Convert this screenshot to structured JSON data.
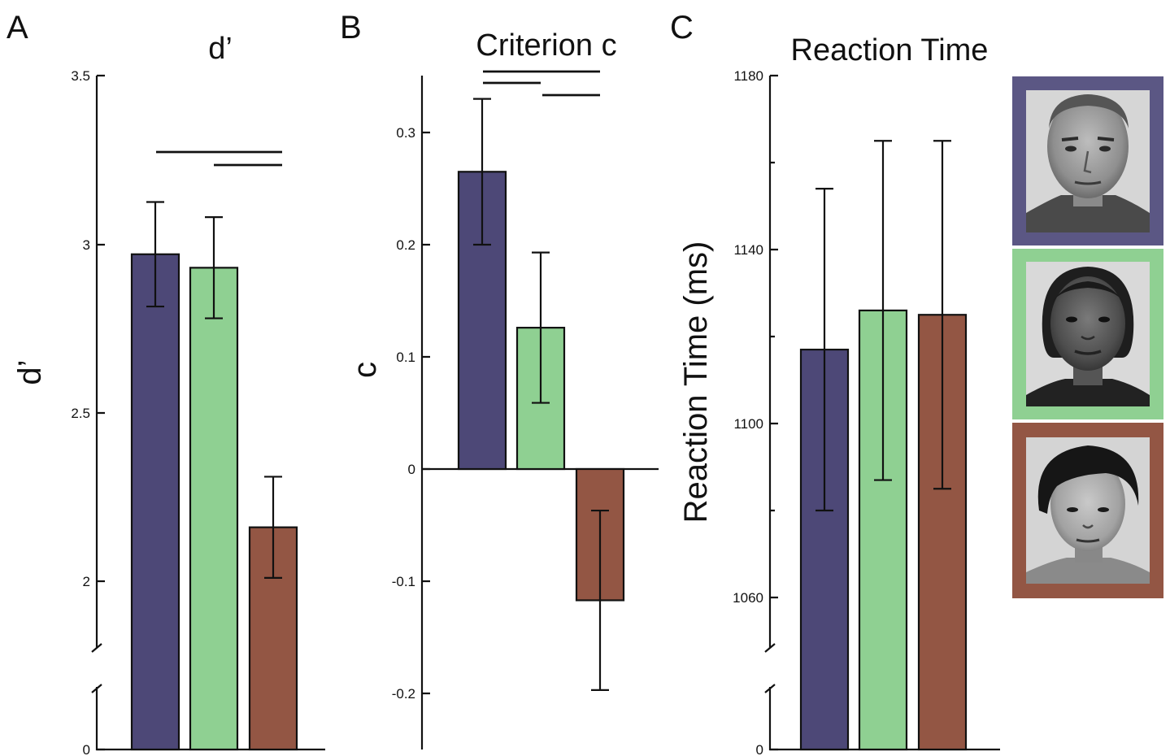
{
  "colors": {
    "series1": "#4d4877",
    "series2": "#8fd092",
    "series3": "#935644"
  },
  "chart_data": [
    {
      "type": "bar",
      "panel": "A",
      "title": "d’",
      "ylabel": "d’",
      "xlabel": "",
      "axis_break": true,
      "ylim": [
        2.0,
        3.5
      ],
      "yticks": [
        "0",
        "2",
        "2.5",
        "3",
        "3.5"
      ],
      "values": [
        2.97,
        2.93,
        2.16
      ],
      "errors": [
        0.155,
        0.15,
        0.15
      ],
      "colors": [
        "#4d4877",
        "#8fd092",
        "#935644"
      ],
      "significance": [
        [
          0,
          2
        ],
        [
          1,
          2
        ]
      ]
    },
    {
      "type": "bar",
      "panel": "B",
      "title": "Criterion c",
      "ylabel": "c",
      "xlabel": "",
      "axis_break": false,
      "ylim": [
        -0.25,
        0.35
      ],
      "yticks": [
        "-0.2",
        "-0.1",
        "0",
        "0.1",
        "0.2",
        "0.3"
      ],
      "values": [
        0.265,
        0.126,
        -0.117
      ],
      "errors": [
        0.065,
        0.067,
        0.08
      ],
      "colors": [
        "#4d4877",
        "#8fd092",
        "#935644"
      ],
      "significance": [
        [
          0,
          2
        ],
        [
          0,
          1
        ],
        [
          1,
          2
        ]
      ]
    },
    {
      "type": "bar",
      "panel": "C",
      "title": "Reaction Time",
      "ylabel": "Reaction Time (ms)",
      "xlabel": "",
      "axis_break": true,
      "ylim": [
        1060,
        1180
      ],
      "yticks": [
        "0",
        "1060",
        "1100",
        "1140",
        "1180"
      ],
      "values": [
        1117,
        1126,
        1125
      ],
      "errors": [
        37,
        39,
        40
      ],
      "colors": [
        "#4d4877",
        "#8fd092",
        "#935644"
      ],
      "significance": []
    }
  ],
  "legend": {
    "placement": "right",
    "entries": [
      {
        "frame_color": "#5b5784",
        "depicts": "face-photo-1"
      },
      {
        "frame_color": "#8fd092",
        "depicts": "face-photo-2"
      },
      {
        "frame_color": "#935644",
        "depicts": "face-photo-3"
      }
    ]
  }
}
